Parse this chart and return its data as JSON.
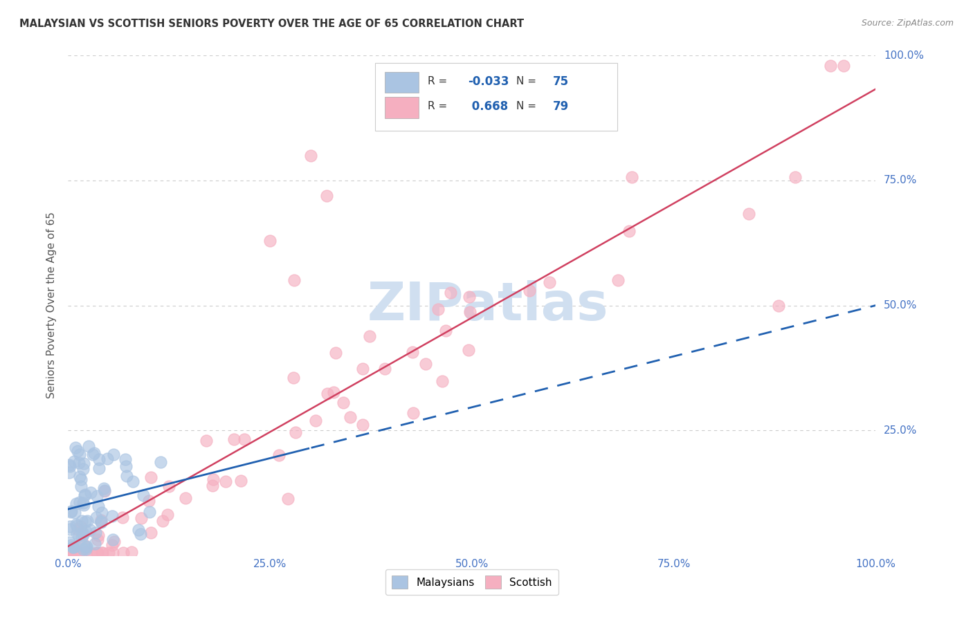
{
  "title": "MALAYSIAN VS SCOTTISH SENIORS POVERTY OVER THE AGE OF 65 CORRELATION CHART",
  "source": "Source: ZipAtlas.com",
  "ylabel": "Seniors Poverty Over the Age of 65",
  "malaysian_color": "#aac4e2",
  "scottish_color": "#f5afc0",
  "line_malaysian_color": "#2060b0",
  "line_scottish_color": "#d04060",
  "R_malaysian": -0.033,
  "N_malaysian": 75,
  "R_scottish": 0.668,
  "N_scottish": 79,
  "background_color": "#ffffff",
  "grid_color": "#cccccc",
  "tick_color": "#4472c4",
  "watermark_color": "#d0dff0",
  "xlim": [
    0.0,
    1.0
  ],
  "ylim": [
    0.0,
    1.0
  ]
}
